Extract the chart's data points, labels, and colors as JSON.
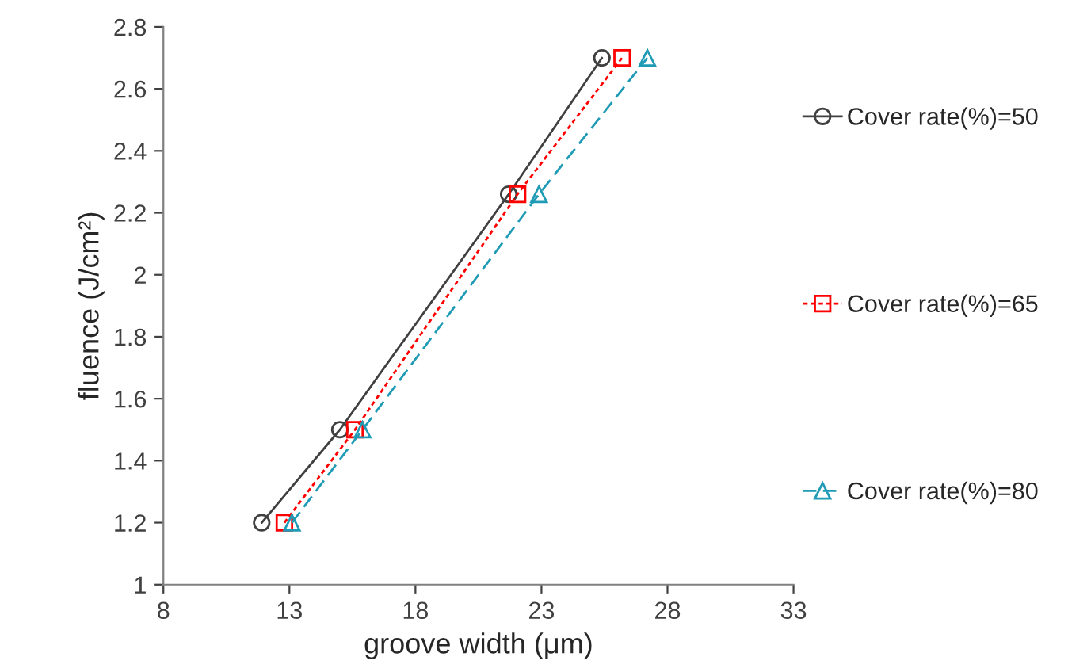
{
  "chart_data": {
    "type": "line",
    "xlabel": "groove width (μm)",
    "ylabel": "fluence (J/cm²)",
    "xlim": [
      8,
      33
    ],
    "xticks": [
      8,
      13,
      18,
      23,
      28,
      33
    ],
    "ylim": [
      1,
      2.8
    ],
    "yticks": [
      1,
      {
        "value": 1.2,
        "label": "1.2"
      },
      {
        "value": 1.4,
        "label": "1.4"
      },
      {
        "value": 1.6,
        "label": "1.6"
      },
      {
        "value": 1.8,
        "label": "1.8"
      },
      2,
      {
        "value": 2.2,
        "label": "2.2"
      },
      {
        "value": 2.4,
        "label": "2.4"
      },
      {
        "value": 2.6,
        "label": "2.6"
      },
      {
        "value": 2.8,
        "label": "2.8"
      }
    ],
    "grid": false,
    "legend": "right",
    "series": [
      {
        "name": "Cover rate(%)=50",
        "color": "#404040",
        "marker": "circle",
        "line_style": "solid",
        "x": [
          11.9,
          15.0,
          21.7,
          25.4
        ],
        "values": [
          1.2,
          1.5,
          2.26,
          2.7
        ]
      },
      {
        "name": "Cover rate(%)=65",
        "color": "#ff0000",
        "marker": "square",
        "line_style": "dotted",
        "x": [
          12.8,
          15.6,
          22.05,
          26.2
        ],
        "values": [
          1.2,
          1.5,
          2.26,
          2.7
        ]
      },
      {
        "name": "Cover rate(%)=80",
        "color": "#1f9bb5",
        "marker": "triangle",
        "line_style": "dashed",
        "x": [
          13.1,
          15.9,
          22.9,
          27.2
        ],
        "values": [
          1.2,
          1.5,
          2.26,
          2.7
        ]
      }
    ]
  }
}
